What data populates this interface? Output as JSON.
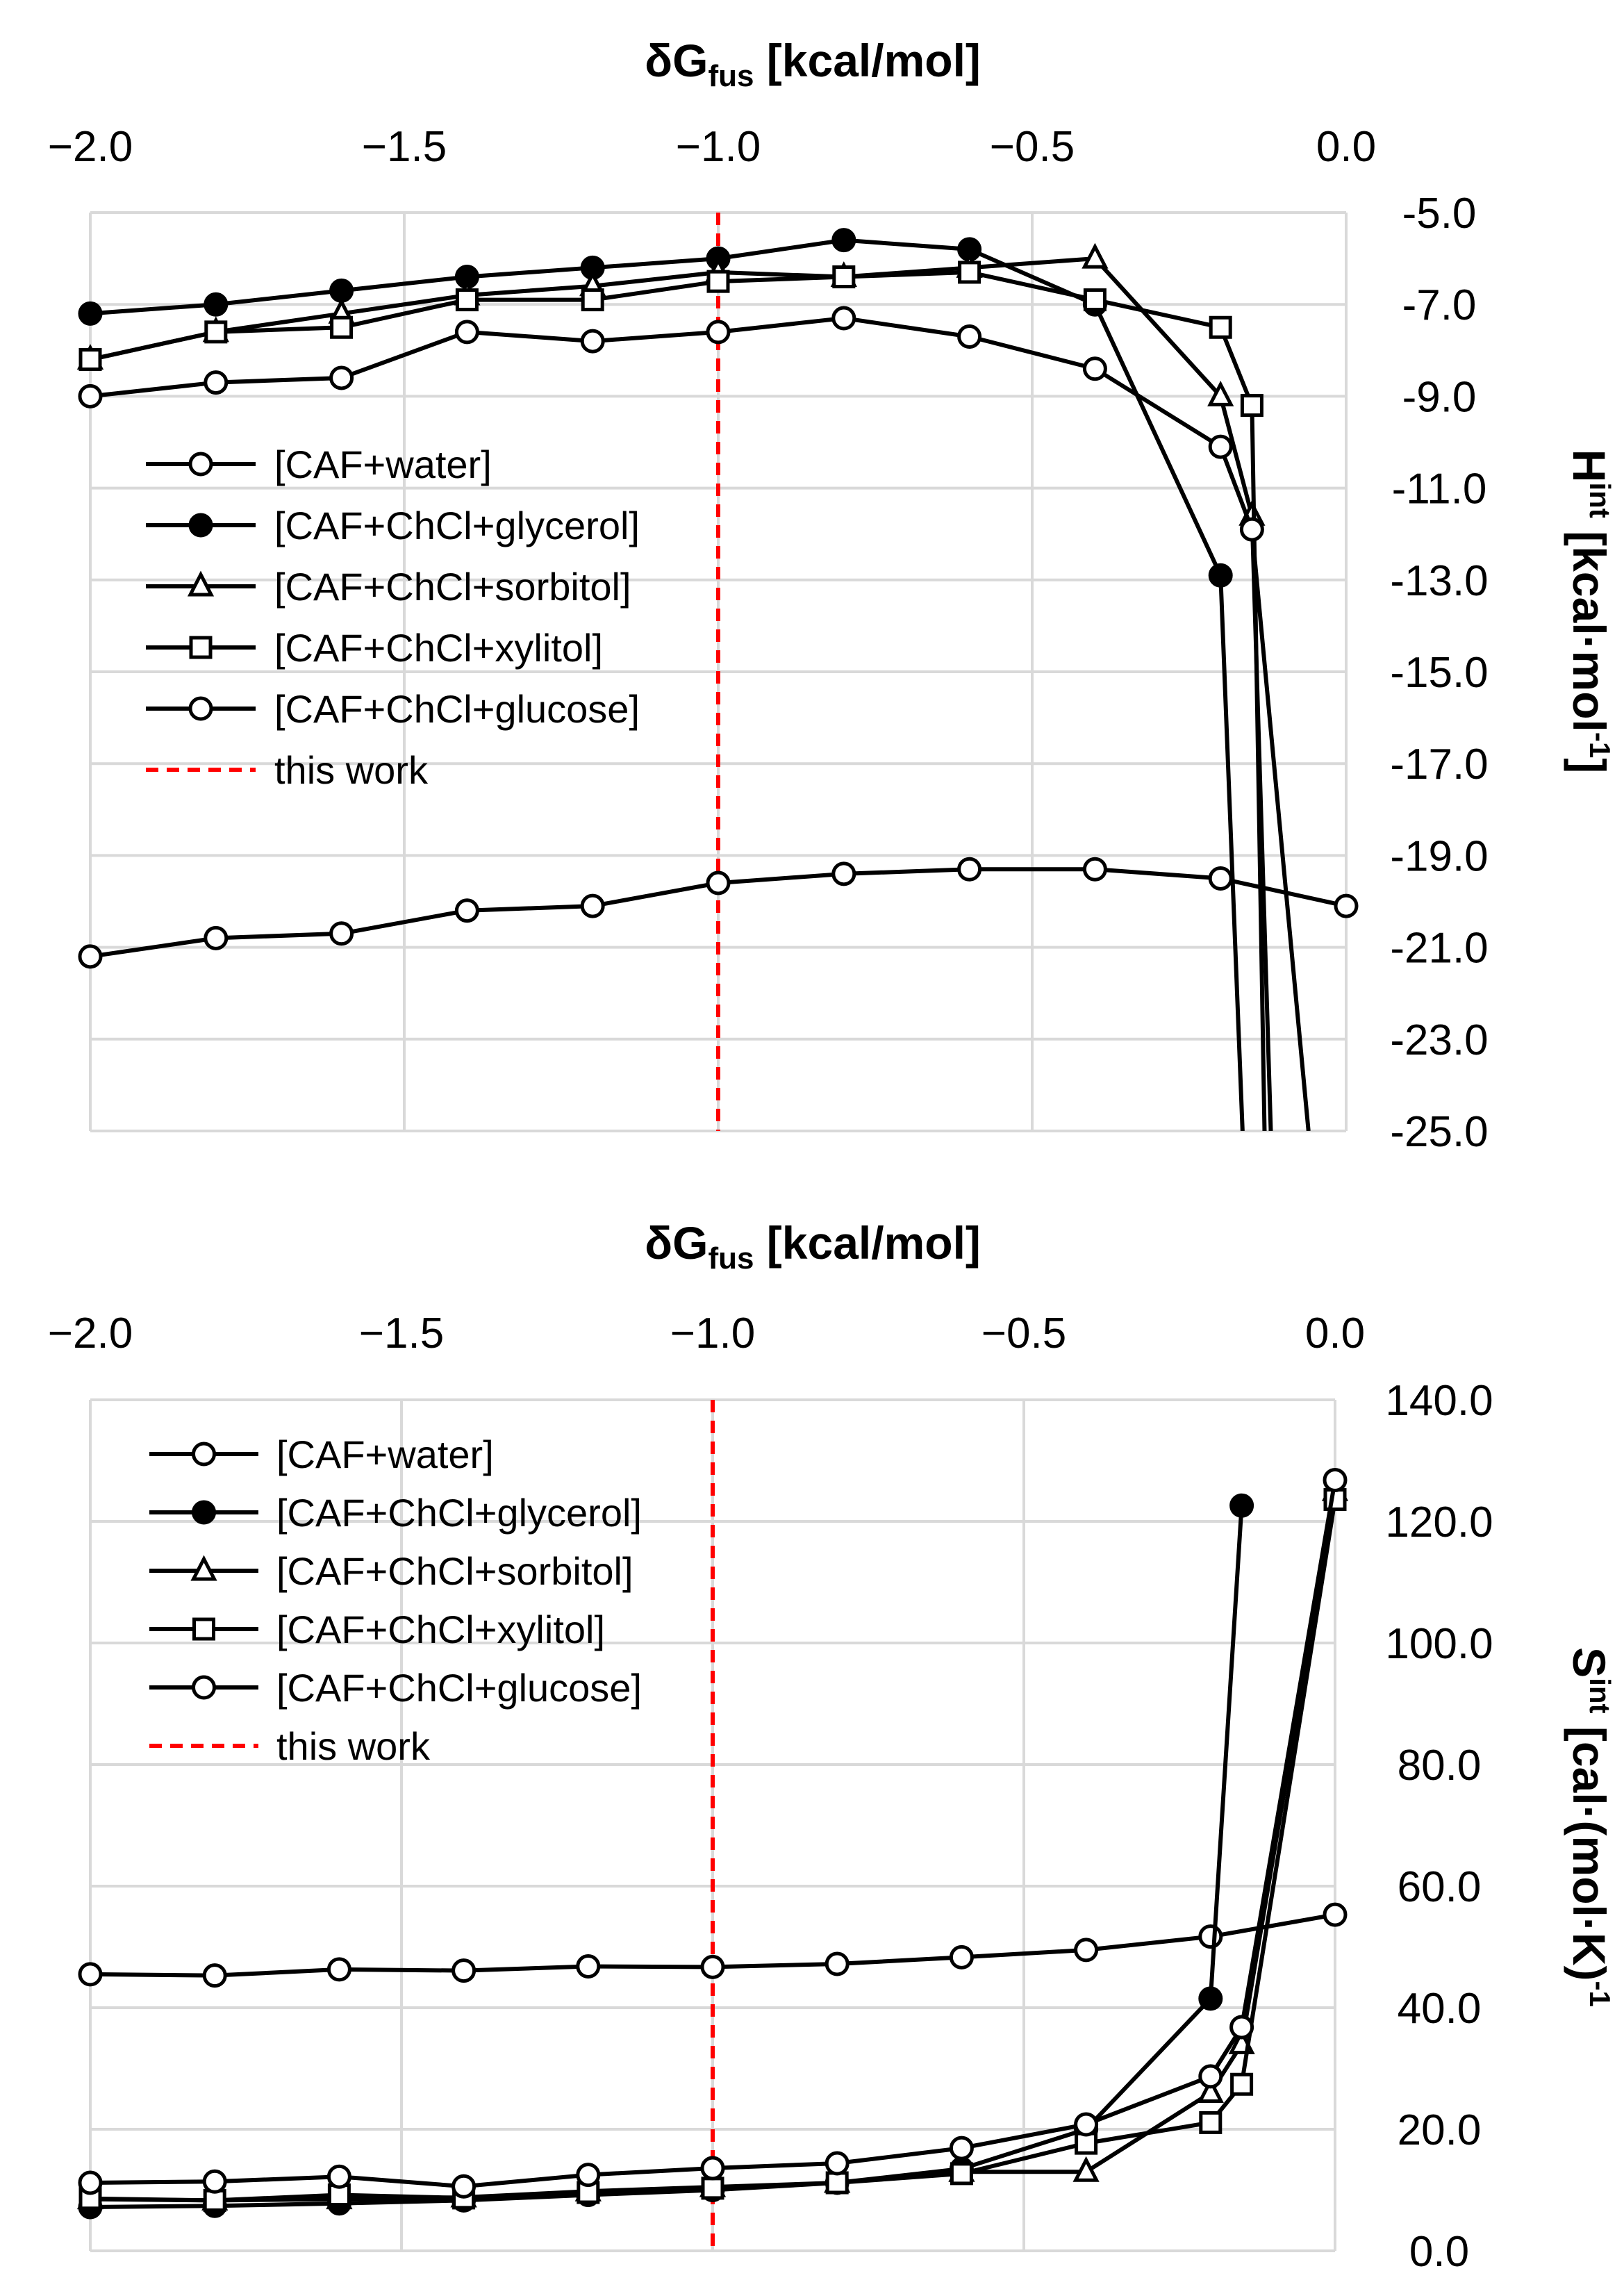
{
  "chart_data": [
    {
      "type": "line",
      "title": "",
      "xlabel": "δG_fus [kcal/mol]",
      "xlabel_main": "δG",
      "xlabel_sub": "fus",
      "xlabel_unit": " [kcal/mol]",
      "ylabel": "H^int [kcal·mol^-1]",
      "ylabel_main": "H",
      "ylabel_sup": "int",
      "ylabel_unit": " [kcal·mol",
      "ylabel_unit_sup": "-1",
      "ylabel_end": "]",
      "xlim": [
        -2.0,
        0.0
      ],
      "ylim": [
        -25.0,
        -5.0
      ],
      "x_ticks": [
        "−2.0",
        "−1.5",
        "−1.0",
        "−0.5",
        "0.0"
      ],
      "y_ticks": [
        "-5.0",
        "-7.0",
        "-9.0",
        "-11.0",
        "-13.0",
        "-15.0",
        "-17.0",
        "-19.0",
        "-21.0",
        "-23.0",
        "-25.0"
      ],
      "reference_line": {
        "x": -1.0,
        "label": "this work",
        "color": "#ff0000"
      },
      "series": [
        {
          "name": "[CAF+water]",
          "marker": "circle-open",
          "x": [
            -2.0,
            -1.8,
            -1.6,
            -1.4,
            -1.2,
            -1.0,
            -0.8,
            -0.6,
            -0.4,
            -0.2,
            0.0
          ],
          "y": [
            -21.2,
            -20.8,
            -20.7,
            -20.2,
            -20.1,
            -19.6,
            -19.4,
            -19.3,
            -19.3,
            -19.5,
            -20.1
          ]
        },
        {
          "name": "[CAF+ChCl+glycerol]",
          "marker": "circle-filled",
          "x": [
            -2.0,
            -1.8,
            -1.6,
            -1.4,
            -1.2,
            -1.0,
            -0.8,
            -0.6,
            -0.4,
            -0.2,
            -0.165
          ],
          "y": [
            -7.2,
            -7.0,
            -6.7,
            -6.4,
            -6.2,
            -6.0,
            -5.6,
            -5.8,
            -7.0,
            -12.9,
            -25.0
          ]
        },
        {
          "name": "[CAF+ChCl+sorbitol]",
          "marker": "triangle-open",
          "x": [
            -2.0,
            -1.8,
            -1.6,
            -1.4,
            -1.2,
            -1.0,
            -0.8,
            -0.6,
            -0.4,
            -0.2,
            -0.15,
            -0.12
          ],
          "y": [
            -8.2,
            -7.6,
            -7.2,
            -6.8,
            -6.6,
            -6.3,
            -6.4,
            -6.2,
            -6.0,
            -9.0,
            -11.6,
            -25.0
          ]
        },
        {
          "name": "[CAF+ChCl+xylitol]",
          "marker": "square-open",
          "x": [
            -2.0,
            -1.8,
            -1.6,
            -1.4,
            -1.2,
            -1.0,
            -0.8,
            -0.6,
            -0.4,
            -0.2,
            -0.15,
            -0.13
          ],
          "y": [
            -8.2,
            -7.6,
            -7.5,
            -6.9,
            -6.9,
            -6.5,
            -6.4,
            -6.3,
            -6.9,
            -7.5,
            -9.2,
            -25.0
          ]
        },
        {
          "name": "[CAF+ChCl+glucose]",
          "marker": "circle-open",
          "x": [
            -2.0,
            -1.8,
            -1.6,
            -1.4,
            -1.2,
            -1.0,
            -0.8,
            -0.6,
            -0.4,
            -0.2,
            -0.15,
            -0.06
          ],
          "y": [
            -9.0,
            -8.7,
            -8.6,
            -7.6,
            -7.8,
            -7.6,
            -7.3,
            -7.7,
            -8.4,
            -10.1,
            -11.9,
            -25.0
          ]
        }
      ],
      "legend": [
        "[CAF+water]",
        "[CAF+ChCl+glycerol]",
        "[CAF+ChCl+sorbitol]",
        "[CAF+ChCl+xylitol]",
        "[CAF+ChCl+glucose]",
        "this work"
      ]
    },
    {
      "type": "line",
      "title": "",
      "xlabel": "δG_fus [kcal/mol]",
      "xlabel_main": "δG",
      "xlabel_sub": "fus",
      "xlabel_unit": " [kcal/mol]",
      "ylabel": "S^int [cal·(mol·K)^-1]",
      "ylabel_main": "S",
      "ylabel_sup": "int",
      "ylabel_unit": " [cal·(mol·K)",
      "ylabel_unit_sup": "-1",
      "ylabel_end": "",
      "xlim": [
        -2.0,
        0.0
      ],
      "ylim": [
        0.0,
        140.0
      ],
      "x_ticks": [
        "−2.0",
        "−1.5",
        "−1.0",
        "−0.5",
        "0.0"
      ],
      "y_ticks": [
        "140.0",
        "120.0",
        "100.0",
        "80.0",
        "60.0",
        "40.0",
        "20.0",
        "0.0"
      ],
      "reference_line": {
        "x": -1.0,
        "label": "this work",
        "color": "#ff0000"
      },
      "series": [
        {
          "name": "[CAF+water]",
          "marker": "circle-open",
          "x": [
            -2.0,
            -1.8,
            -1.6,
            -1.4,
            -1.2,
            -1.0,
            -0.8,
            -0.6,
            -0.4,
            -0.2,
            0.0
          ],
          "y": [
            45.5,
            45.3,
            46.3,
            46.1,
            46.8,
            46.7,
            47.2,
            48.3,
            49.5,
            51.7,
            55.3
          ]
        },
        {
          "name": "[CAF+ChCl+glycerol]",
          "marker": "circle-filled",
          "x": [
            -2.0,
            -1.8,
            -1.6,
            -1.4,
            -1.2,
            -1.0,
            -0.8,
            -0.6,
            -0.4,
            -0.2,
            -0.15
          ],
          "y": [
            7.2,
            7.4,
            7.8,
            8.3,
            9.2,
            10.0,
            11.2,
            13.5,
            20.0,
            41.5,
            122.6
          ]
        },
        {
          "name": "[CAF+ChCl+sorbitol]",
          "marker": "triangle-open",
          "x": [
            -2.0,
            -1.8,
            -1.6,
            -1.4,
            -1.2,
            -1.0,
            -0.8,
            -0.6,
            -0.4,
            -0.2,
            -0.15,
            0.0
          ],
          "y": [
            8.5,
            8.3,
            8.5,
            8.8,
            9.8,
            10.5,
            11.2,
            13.0,
            13.0,
            26.0,
            34.0,
            125.0
          ]
        },
        {
          "name": "[CAF+ChCl+xylitol]",
          "marker": "square-open",
          "x": [
            -2.0,
            -1.8,
            -1.6,
            -1.4,
            -1.2,
            -1.0,
            -0.8,
            -0.6,
            -0.4,
            -0.2,
            -0.15,
            0.0
          ],
          "y": [
            8.6,
            8.3,
            9.2,
            8.7,
            9.6,
            10.3,
            11.2,
            12.7,
            17.7,
            21.1,
            27.4,
            123.6
          ]
        },
        {
          "name": "[CAF+ChCl+glucose]",
          "marker": "circle-open",
          "x": [
            -2.0,
            -1.8,
            -1.6,
            -1.4,
            -1.2,
            -1.0,
            -0.8,
            -0.6,
            -0.4,
            -0.2,
            -0.15,
            0.0
          ],
          "y": [
            11.2,
            11.4,
            12.2,
            10.6,
            12.5,
            13.6,
            14.4,
            16.9,
            20.8,
            28.7,
            36.8,
            126.8
          ]
        }
      ],
      "legend": [
        "[CAF+water]",
        "[CAF+ChCl+glycerol]",
        "[CAF+ChCl+sorbitol]",
        "[CAF+ChCl+xylitol]",
        "[CAF+ChCl+glucose]",
        "this work"
      ]
    }
  ]
}
